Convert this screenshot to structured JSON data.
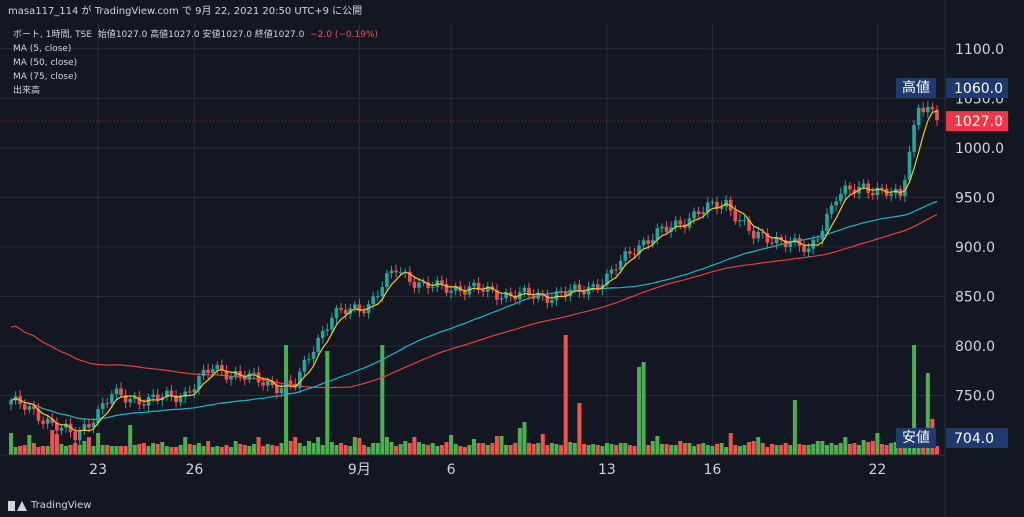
{
  "header": {
    "text": "masa117_114 が TradingView.com で 9月 22, 2021 20:50 UTC+9 に公開"
  },
  "legend": {
    "symbol": "ボート, 1時間, TSE",
    "ohlc": "始値1027.0  高値1027.0  安値1027.0  終値1027.0",
    "change": "−2.0 (−0.19%)",
    "ma5": "MA (5, close)",
    "ma50": "MA (50, close)",
    "ma75": "MA (75, close)",
    "volume": "出来高"
  },
  "badges": {
    "high_label": "高値",
    "high_value": "1060.0",
    "low_label": "安値",
    "low_value": "704.0",
    "last_value": "1027.0"
  },
  "footer": {
    "brand": "TradingView"
  },
  "colors": {
    "background": "#131722",
    "up": "#26a69a",
    "down": "#ef5350",
    "ma5": "#f7c531",
    "ma50": "#1fb5c4",
    "ma75": "#e5403b",
    "vol_up": "#4caf50",
    "vol_down": "#ef5350",
    "badge_dark": "#1e3a6e",
    "badge_last": "#f23645"
  },
  "chart_data": {
    "type": "candlestick",
    "ylim": [
      690,
      1125
    ],
    "y_ticks": [
      "1100.0",
      "1050.0",
      "1000.0",
      "950.0",
      "900.0",
      "850.0",
      "800.0",
      "750.0"
    ],
    "x_tick_labels": [
      "23",
      "26",
      "9月",
      "6",
      "13",
      "16",
      "22"
    ],
    "x_tick_positions": [
      19,
      40,
      76,
      96,
      130,
      153,
      189
    ],
    "bars": 203,
    "close_anchors": [
      [
        0,
        745
      ],
      [
        8,
        725
      ],
      [
        14,
        708
      ],
      [
        22,
        750
      ],
      [
        30,
        745
      ],
      [
        38,
        752
      ],
      [
        44,
        778
      ],
      [
        50,
        770
      ],
      [
        58,
        760
      ],
      [
        62,
        760
      ],
      [
        66,
        800
      ],
      [
        70,
        830
      ],
      [
        78,
        842
      ],
      [
        84,
        878
      ],
      [
        90,
        860
      ],
      [
        100,
        858
      ],
      [
        108,
        852
      ],
      [
        116,
        850
      ],
      [
        124,
        855
      ],
      [
        130,
        868
      ],
      [
        136,
        900
      ],
      [
        142,
        915
      ],
      [
        150,
        935
      ],
      [
        156,
        945
      ],
      [
        162,
        910
      ],
      [
        168,
        908
      ],
      [
        174,
        895
      ],
      [
        180,
        950
      ],
      [
        186,
        962
      ],
      [
        190,
        955
      ],
      [
        194,
        950
      ],
      [
        198,
        1045
      ],
      [
        202,
        1029
      ]
    ],
    "volume": [
      22,
      8,
      9,
      10,
      20,
      12,
      8,
      9,
      9,
      25,
      21,
      11,
      9,
      10,
      12,
      10,
      14,
      18,
      9,
      22,
      10,
      10,
      9,
      9,
      9,
      9,
      30,
      10,
      11,
      12,
      9,
      12,
      11,
      13,
      9,
      8,
      8,
      10,
      18,
      11,
      10,
      12,
      9,
      14,
      8,
      9,
      8,
      10,
      8,
      14,
      11,
      10,
      9,
      11,
      18,
      9,
      11,
      10,
      9,
      12,
      8,
      14,
      18,
      12,
      9,
      14,
      12,
      18,
      10,
      10,
      13,
      10,
      12,
      10,
      9,
      18,
      17,
      10,
      8,
      12,
      12,
      110,
      18,
      13,
      9,
      11,
      14,
      12,
      18,
      13,
      11,
      10,
      12,
      9,
      10,
      13,
      20,
      11,
      9,
      8,
      10,
      16,
      12,
      12,
      10,
      12,
      19,
      19,
      10,
      10,
      12,
      27,
      33,
      12,
      11,
      12,
      21,
      10,
      12,
      11,
      10,
      10,
      13,
      12,
      9,
      11,
      10,
      11,
      10,
      9,
      12,
      11,
      10,
      12,
      12,
      10,
      9,
      20,
      16,
      10,
      14,
      19,
      11,
      11,
      10,
      10,
      14,
      12,
      12,
      9,
      11,
      12,
      10,
      9,
      11,
      12,
      8,
      22,
      10,
      9,
      10,
      13,
      14,
      25,
      12,
      8,
      11,
      10,
      10,
      12,
      10,
      55,
      11,
      10,
      10,
      11,
      14,
      14,
      10,
      12,
      10,
      12,
      18,
      11,
      12,
      10,
      15,
      13,
      14,
      22,
      11,
      10,
      12,
      13,
      15,
      14,
      10,
      20,
      10,
      11,
      9,
      11,
      9,
      12,
      12,
      12,
      13,
      12,
      25
    ],
    "volume_spikes": [
      [
        60,
        110
      ],
      [
        69,
        104
      ],
      [
        121,
        120
      ],
      [
        124,
        52
      ],
      [
        137,
        88
      ],
      [
        138,
        93
      ],
      [
        163,
        18
      ],
      [
        197,
        110
      ],
      [
        200,
        82
      ],
      [
        201,
        36
      ]
    ]
  }
}
